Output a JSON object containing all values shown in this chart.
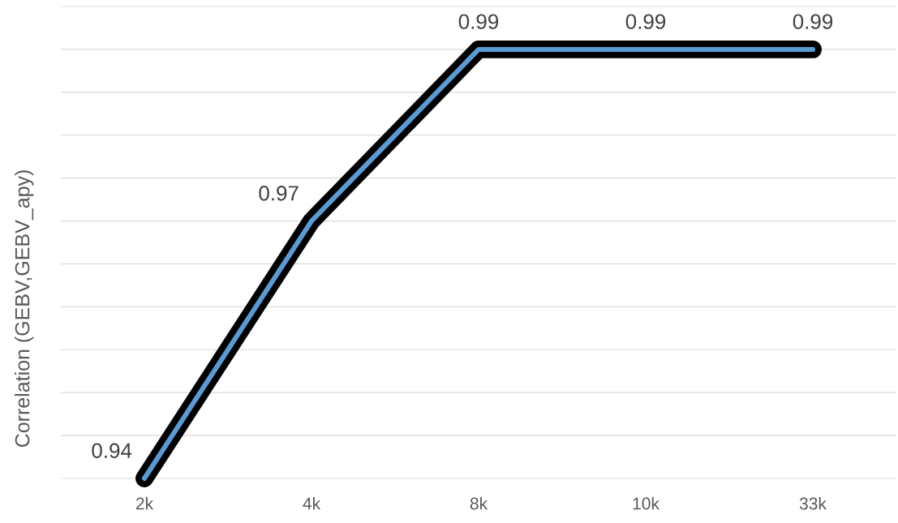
{
  "chart_data": {
    "type": "line",
    "ylabel": "Correlation (GEBV,GEBV_apy)",
    "categories": [
      "2k",
      "4k",
      "8k",
      "10k",
      "33k"
    ],
    "series": [
      {
        "color": "#5b9bd5",
        "values": [
          0.94,
          0.97,
          0.99,
          0.99,
          0.99
        ]
      }
    ],
    "tick_labels": "x",
    "grid": "y",
    "data_labels": true,
    "marker": "none",
    "line_style": "solid"
  }
}
